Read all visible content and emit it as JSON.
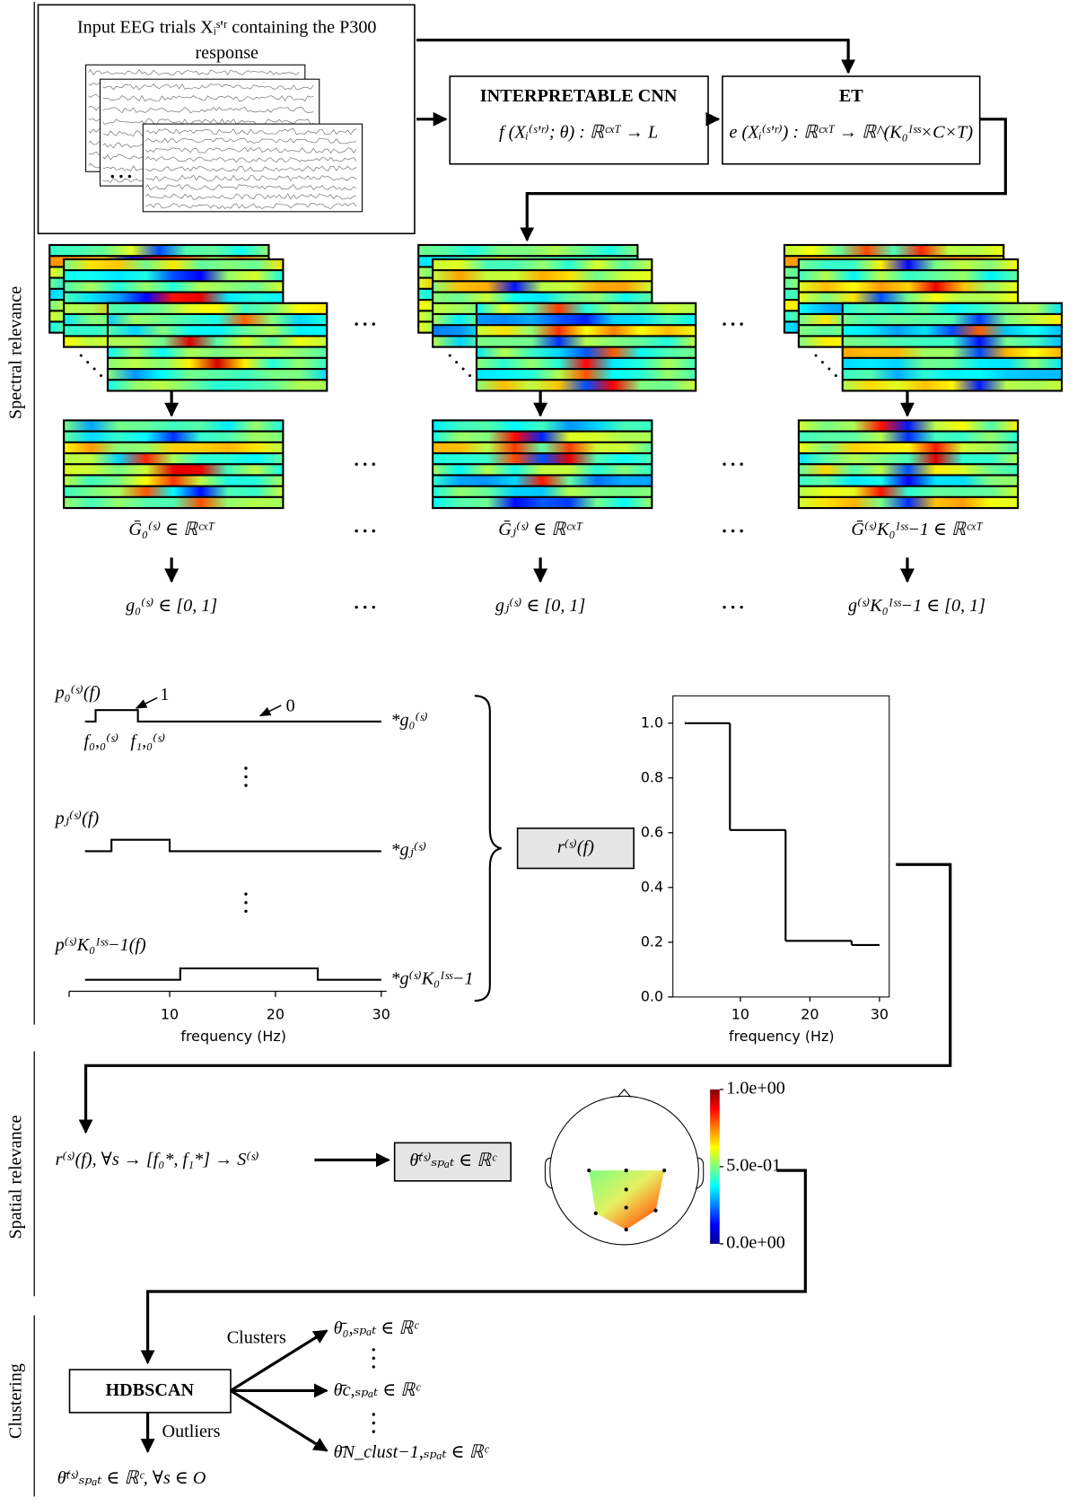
{
  "side_labels": [
    "Spectral relevance",
    "Spatial relevance",
    "Clustering"
  ],
  "input": {
    "title_line1": "Input EEG trials Xᵢˢ'ʳ  containing the P300",
    "title_line2": "response"
  },
  "cnn": {
    "title": "INTERPRETABLE CNN",
    "formula": "f (Xᵢ⁽ˢ'ʳ⁾; θ) : ℝᶜˣᵀ → L"
  },
  "et": {
    "title": "ET",
    "formula": "e (Xᵢ⁽ˢ'ʳ⁾) : ℝᶜˣᵀ → ℝ^(K₀ᴵˢˢ×C×T)"
  },
  "columns": [
    {
      "average": "Ḡ₀⁽ˢ⁾  ∈ ℝᶜˣᵀ",
      "score": "g₀⁽ˢ⁾ ∈ [0, 1]"
    },
    {
      "average": "Ḡⱼ⁽ˢ⁾  ∈ ℝᶜˣᵀ",
      "score": "gⱼ⁽ˢ⁾ ∈ [0, 1]"
    },
    {
      "average": "Ḡ⁽ˢ⁾K₀ᴵˢˢ−1 ∈ ℝᶜˣᵀ",
      "score": "g⁽ˢ⁾K₀ᴵˢˢ−1 ∈ [0, 1]"
    }
  ],
  "pulses": {
    "labels": [
      "p₀⁽ˢ⁾(f)",
      "pⱼ⁽ˢ⁾(f)",
      "p⁽ˢ⁾K₀ᴵˢˢ−1(f)"
    ],
    "weights": [
      "*g₀⁽ˢ⁾",
      "*gⱼ⁽ˢ⁾",
      "*g⁽ˢ⁾K₀ᴵˢˢ−1"
    ],
    "marker_one": "1",
    "marker_zero": "0",
    "f_labels": [
      "f₀,₀⁽ˢ⁾",
      "f₁,₀⁽ˢ⁾"
    ],
    "intervals": [
      [
        3,
        7
      ],
      [
        4.5,
        10
      ],
      [
        11,
        24
      ]
    ],
    "range": [
      2,
      30
    ],
    "xlim": [
      0.5,
      30.5
    ],
    "xticks": [
      10,
      20,
      30
    ],
    "xlabel": "frequency (Hz)"
  },
  "aggregate_label": "r⁽ˢ⁾(f)",
  "relevance_plot": {
    "bins": [
      2,
      8.5,
      16.5,
      26,
      30
    ],
    "values": [
      1.0,
      0.61,
      0.205,
      0.19
    ],
    "xlim": [
      0.3,
      31.4
    ],
    "ylim": [
      0,
      1.1
    ],
    "xticks": [
      10,
      20,
      30
    ],
    "yticks": [
      {
        "value": 0,
        "label": "0.0"
      },
      {
        "value": 0.2,
        "label": "0.2"
      },
      {
        "value": 0.4,
        "label": "0.4"
      },
      {
        "value": 0.6,
        "label": "0.6"
      },
      {
        "value": 0.8,
        "label": "0.8"
      },
      {
        "value": 1,
        "label": "1.0"
      }
    ],
    "xlabel": "frequency (Hz)"
  },
  "spatial": {
    "pipeline": "r⁽ˢ⁾(f), ∀s → [f₀*, f₁*] → S⁽ˢ⁾",
    "output": "θ̄⁽ˢ⁾ₛₚₐₜ ∈ ℝᶜ",
    "colorbar_ticks": [
      {
        "value": 1,
        "label": "1.0e+00"
      },
      {
        "value": 0.5,
        "label": "5.0e-01"
      },
      {
        "value": 0,
        "label": "0.0e+00"
      }
    ]
  },
  "clustering": {
    "method": "HDBSCAN",
    "clusters_label": "Clusters",
    "outliers_label": "Outliers",
    "clusters": [
      "θ̄₀,ₛₚₐₜ ∈ ℝᶜ",
      "θ̄c,ₛₚₐₜ ∈ ℝᶜ",
      "θ̄N_clust−1,ₛₚₐₜ ∈ ℝᶜ"
    ],
    "outliers": "θ̄⁽ˢ⁾ₛₚₐₜ ∈ ℝᶜ, ∀s ∈ O"
  }
}
